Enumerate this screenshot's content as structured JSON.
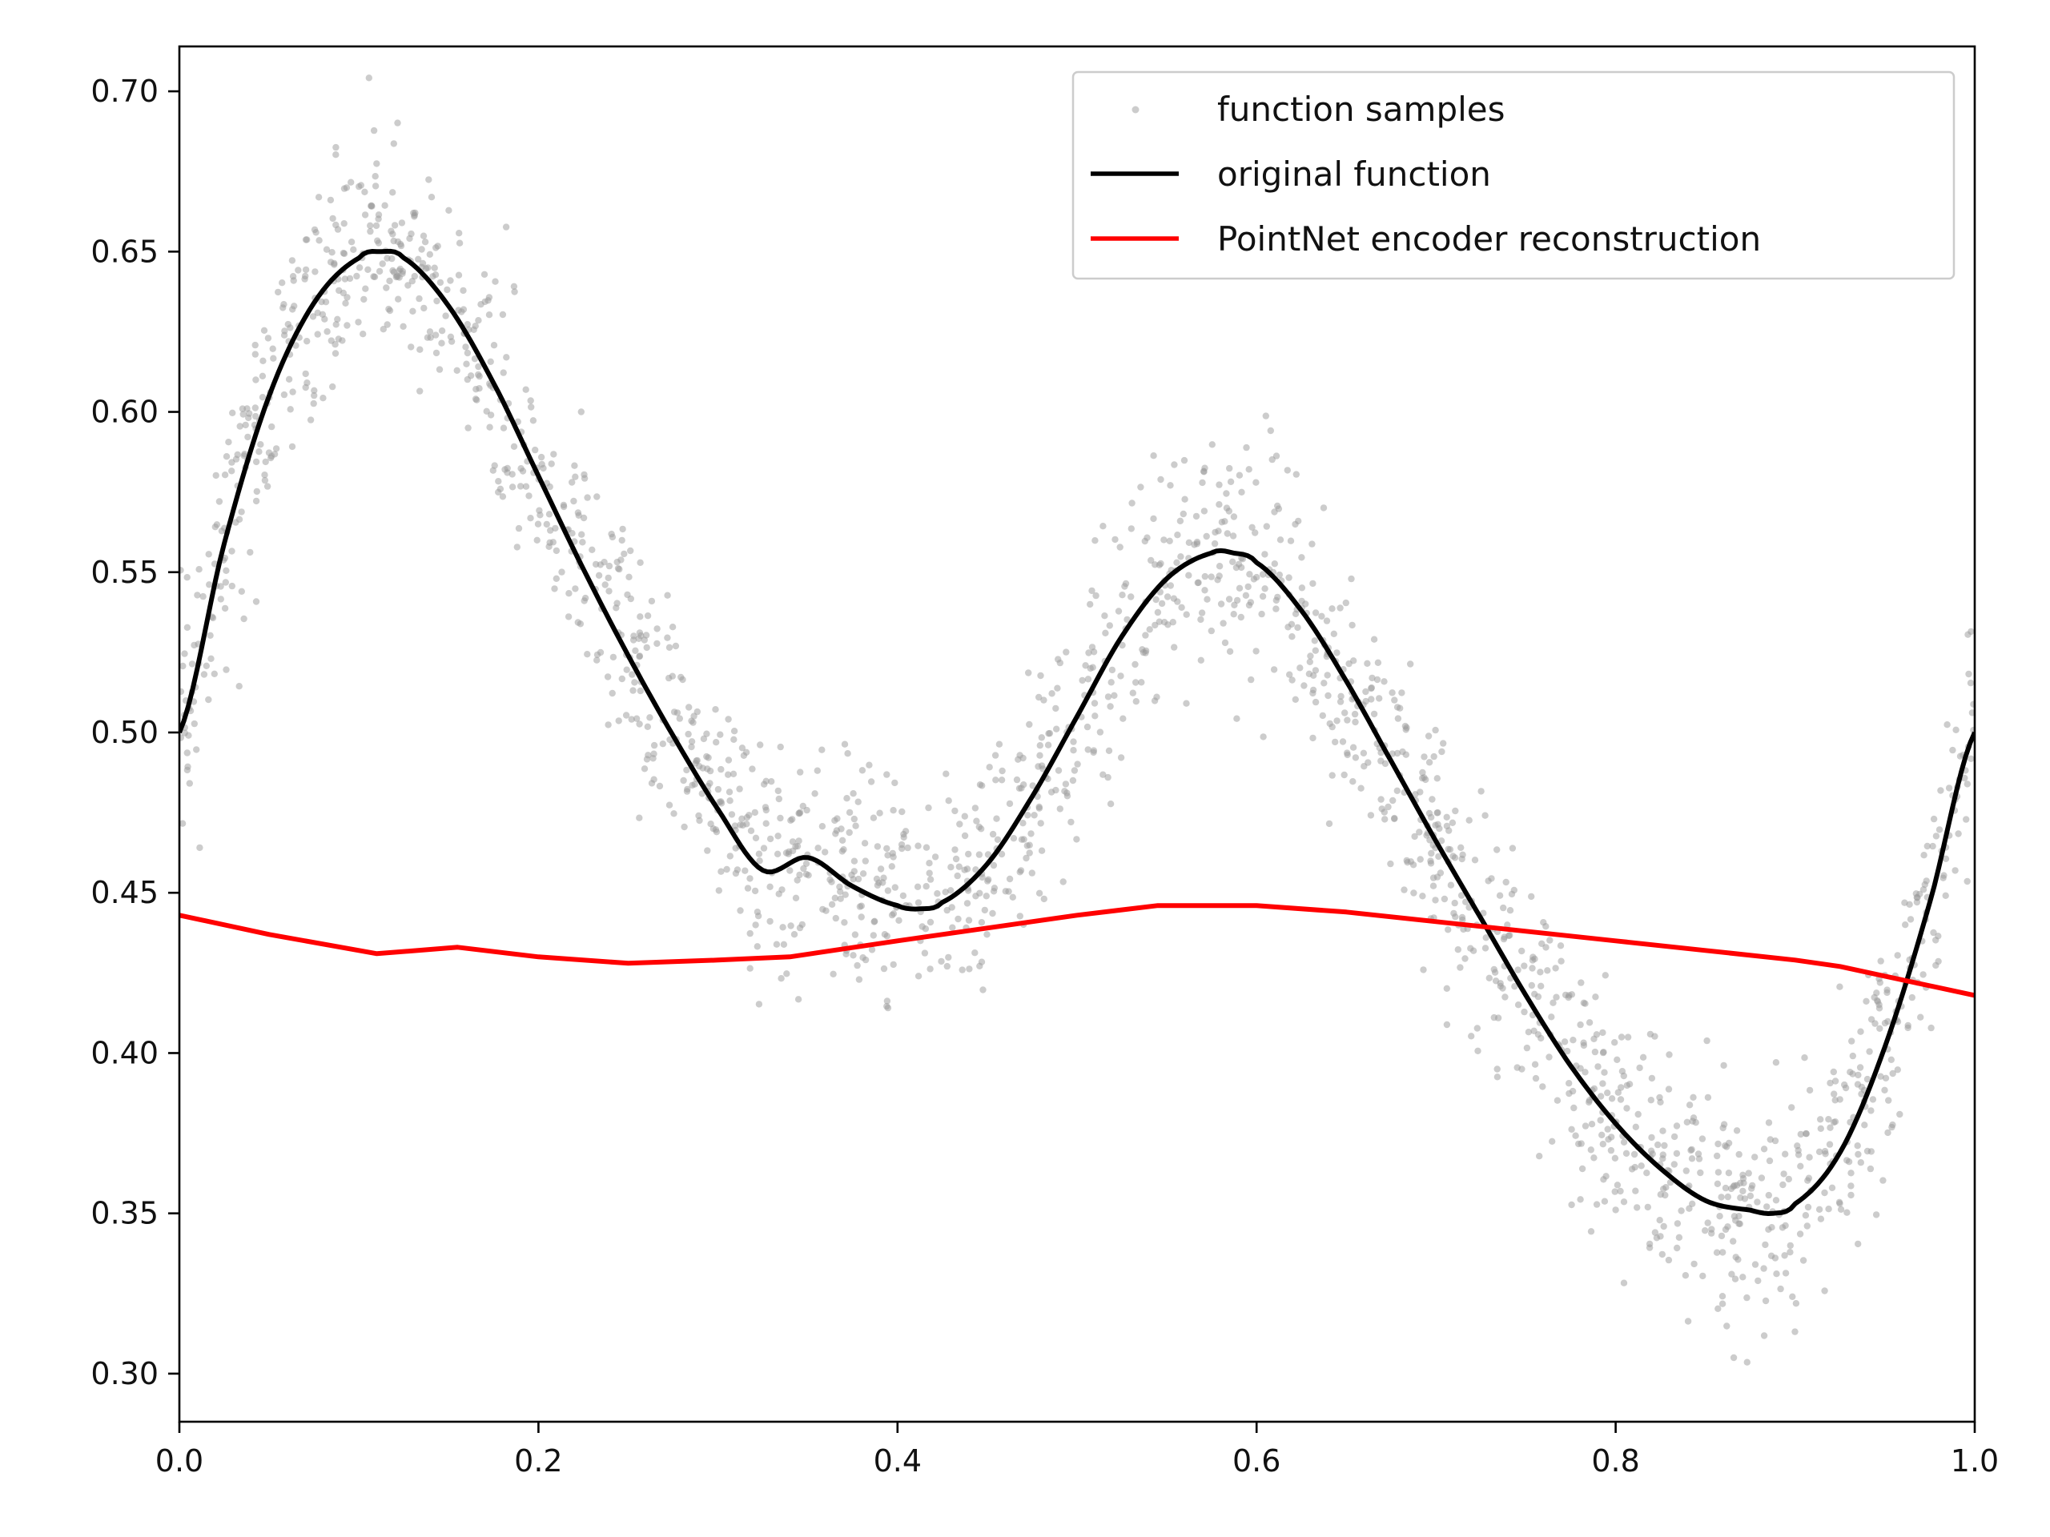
{
  "chart_data": {
    "type": "line",
    "title": "",
    "xlabel": "",
    "ylabel": "",
    "xlim": [
      0.0,
      1.0
    ],
    "ylim": [
      0.285,
      0.714
    ],
    "grid": false,
    "legend_position": "top-right",
    "x_ticks": [
      {
        "value": 0.0,
        "label": "0.0"
      },
      {
        "value": 0.2,
        "label": "0.2"
      },
      {
        "value": 0.4,
        "label": "0.4"
      },
      {
        "value": 0.6,
        "label": "0.6"
      },
      {
        "value": 0.8,
        "label": "0.8"
      },
      {
        "value": 1.0,
        "label": "1.0"
      }
    ],
    "y_ticks": [
      {
        "value": 0.3,
        "label": "0.30"
      },
      {
        "value": 0.35,
        "label": "0.35"
      },
      {
        "value": 0.4,
        "label": "0.40"
      },
      {
        "value": 0.45,
        "label": "0.45"
      },
      {
        "value": 0.5,
        "label": "0.50"
      },
      {
        "value": 0.55,
        "label": "0.55"
      },
      {
        "value": 0.6,
        "label": "0.60"
      },
      {
        "value": 0.65,
        "label": "0.65"
      },
      {
        "value": 0.7,
        "label": "0.70"
      }
    ],
    "series": [
      {
        "name": "function samples",
        "kind": "scatter",
        "color": "#9a9a9a",
        "sample_count": 2000,
        "noise_sd": 0.018,
        "x_range": [
          0.0,
          1.0
        ]
      },
      {
        "name": "original function",
        "kind": "line",
        "color": "#000000",
        "x": [
          0.0,
          0.025,
          0.05,
          0.075,
          0.1,
          0.112,
          0.125,
          0.15,
          0.175,
          0.2,
          0.225,
          0.25,
          0.275,
          0.3,
          0.325,
          0.35,
          0.375,
          0.4,
          0.413,
          0.425,
          0.45,
          0.475,
          0.5,
          0.525,
          0.55,
          0.575,
          0.587,
          0.6,
          0.625,
          0.65,
          0.675,
          0.7,
          0.725,
          0.75,
          0.775,
          0.8,
          0.825,
          0.85,
          0.875,
          0.888,
          0.9,
          0.925,
          0.95,
          0.975,
          1.0
        ],
        "y": [
          0.5,
          0.559,
          0.605,
          0.634,
          0.648,
          0.65,
          0.648,
          0.633,
          0.609,
          0.58,
          0.551,
          0.524,
          0.499,
          0.476,
          0.457,
          0.461,
          0.452,
          0.446,
          0.445,
          0.447,
          0.459,
          0.48,
          0.505,
          0.53,
          0.548,
          0.556,
          0.556,
          0.553,
          0.538,
          0.516,
          0.491,
          0.466,
          0.442,
          0.418,
          0.396,
          0.378,
          0.364,
          0.354,
          0.351,
          0.35,
          0.353,
          0.369,
          0.402,
          0.447,
          0.5
        ]
      },
      {
        "name": "PointNet encoder reconstruction",
        "kind": "line",
        "color": "#ff0000",
        "x": [
          0.0,
          0.05,
          0.11,
          0.155,
          0.2,
          0.25,
          0.3,
          0.34,
          0.4,
          0.45,
          0.5,
          0.545,
          0.6,
          0.65,
          0.7,
          0.75,
          0.8,
          0.85,
          0.9,
          0.925,
          0.95,
          1.0
        ],
        "y": [
          0.443,
          0.437,
          0.431,
          0.433,
          0.43,
          0.428,
          0.429,
          0.43,
          0.435,
          0.439,
          0.443,
          0.446,
          0.446,
          0.444,
          0.441,
          0.438,
          0.435,
          0.432,
          0.429,
          0.427,
          0.424,
          0.418
        ]
      }
    ]
  }
}
